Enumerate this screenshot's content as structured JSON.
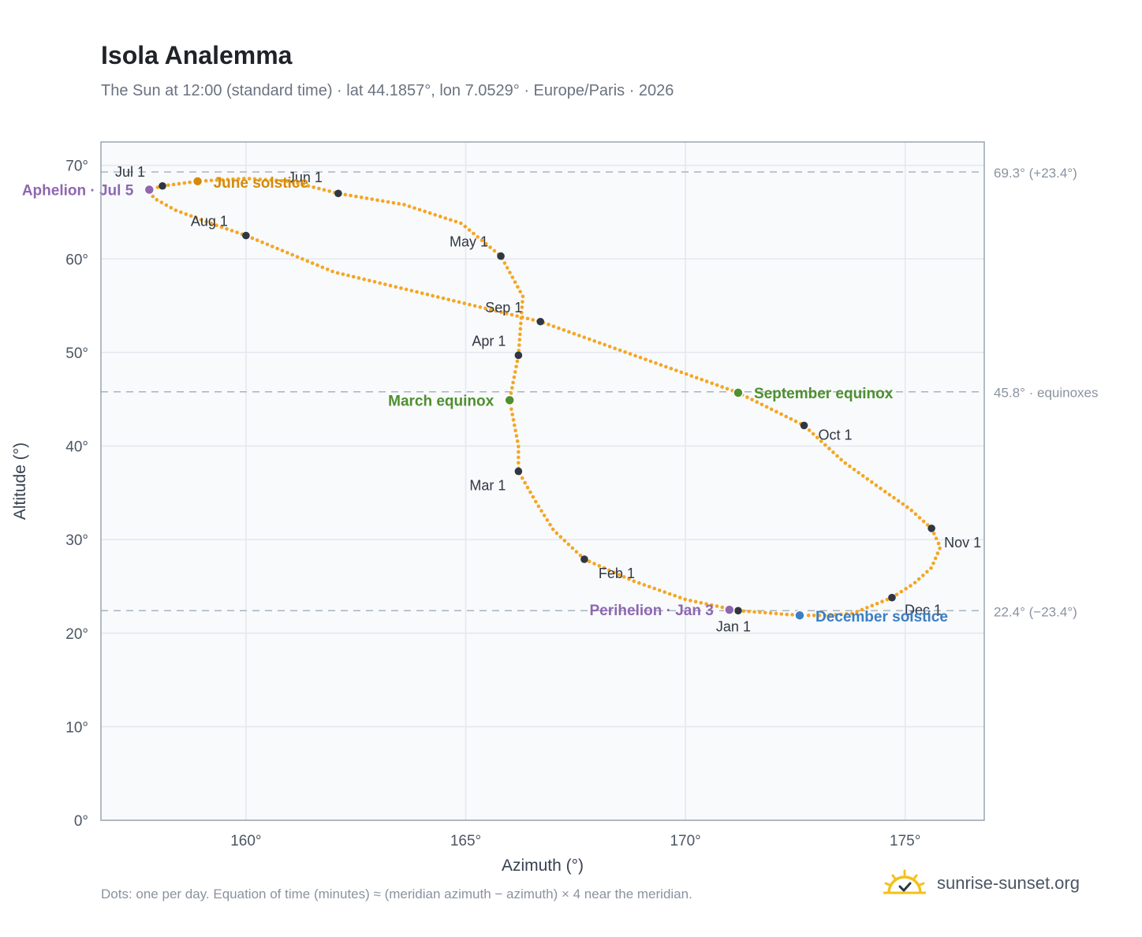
{
  "header": {
    "title": "Isola Analemma",
    "subtitle": "The Sun at 12:00 (standard time) · lat 44.1857°, lon 7.0529° · Europe/Paris · 2026"
  },
  "footer": {
    "note": "Dots: one per day. Equation of time (minutes) ≈ (meridian azimuth − azimuth) × 4 near the meridian.",
    "brand": "sunrise-sunset.org"
  },
  "colors": {
    "curve": "#f5a623",
    "month_marker": "#2f3742",
    "june_solstice": "#d48a0c",
    "equinox": "#4f8f2f",
    "december_solstice": "#3a7ec5",
    "apsis": "#8e67b0",
    "reference_line": "#a8b4bf",
    "plot_bg": "#f8fafc",
    "grid": "#e3e8ee"
  },
  "chart_data": {
    "type": "scatter",
    "xlabel": "Azimuth (°)",
    "ylabel": "Altitude (°)",
    "xlim": [
      156.7,
      176.8
    ],
    "ylim": [
      0,
      72.5
    ],
    "x_ticks": [
      160,
      165,
      170,
      175
    ],
    "x_tick_labels": [
      "160°",
      "165°",
      "170°",
      "175°"
    ],
    "y_ticks": [
      0,
      10,
      20,
      30,
      40,
      50,
      60,
      70
    ],
    "y_tick_labels": [
      "0°",
      "10°",
      "20°",
      "30°",
      "40°",
      "50°",
      "60°",
      "70°"
    ],
    "grid": true,
    "series": [
      {
        "points": [
          [
            171.2,
            22.4
          ],
          [
            171.8,
            22.2
          ],
          [
            172.3,
            22.0
          ],
          [
            172.8,
            21.9
          ],
          [
            173.2,
            21.9
          ],
          [
            173.8,
            22.1
          ],
          [
            174.7,
            23.8
          ],
          [
            175.2,
            25.3
          ],
          [
            175.6,
            27.0
          ],
          [
            175.8,
            29.2
          ],
          [
            175.6,
            31.2
          ],
          [
            175.1,
            33.3
          ],
          [
            174.4,
            35.6
          ],
          [
            173.6,
            38.3
          ],
          [
            172.7,
            42.2
          ],
          [
            171.2,
            45.7
          ],
          [
            166.7,
            53.3
          ],
          [
            162.0,
            58.6
          ],
          [
            160.0,
            62.5
          ],
          [
            159.2,
            63.8
          ],
          [
            158.4,
            65.2
          ],
          [
            157.9,
            66.5
          ],
          [
            157.8,
            67.4
          ],
          [
            158.1,
            67.8
          ],
          [
            158.9,
            68.3
          ],
          [
            160.0,
            68.6
          ],
          [
            161.0,
            68.3
          ],
          [
            162.1,
            67.0
          ],
          [
            163.6,
            65.8
          ],
          [
            164.9,
            63.8
          ],
          [
            165.8,
            60.3
          ],
          [
            166.3,
            56.0
          ],
          [
            166.2,
            49.7
          ],
          [
            166.0,
            44.9
          ],
          [
            166.2,
            40.0
          ],
          [
            166.2,
            37.3
          ],
          [
            166.6,
            34.0
          ],
          [
            167.0,
            31.0
          ],
          [
            167.7,
            27.9
          ],
          [
            168.8,
            25.6
          ],
          [
            170.0,
            23.6
          ],
          [
            171.2,
            22.4
          ]
        ]
      }
    ],
    "month_markers": [
      {
        "label": "Jan 1",
        "az": 171.2,
        "alt": 22.4
      },
      {
        "label": "Feb 1",
        "az": 167.7,
        "alt": 27.9
      },
      {
        "label": "Mar 1",
        "az": 166.2,
        "alt": 37.3
      },
      {
        "label": "Apr 1",
        "az": 166.2,
        "alt": 49.7
      },
      {
        "label": "May 1",
        "az": 165.8,
        "alt": 60.3
      },
      {
        "label": "Jun 1",
        "az": 162.1,
        "alt": 67.0
      },
      {
        "label": "Jul 1",
        "az": 158.1,
        "alt": 67.8
      },
      {
        "label": "Aug 1",
        "az": 160.0,
        "alt": 62.5
      },
      {
        "label": "Sep 1",
        "az": 166.7,
        "alt": 53.3
      },
      {
        "label": "Oct 1",
        "az": 172.7,
        "alt": 42.2
      },
      {
        "label": "Nov 1",
        "az": 175.6,
        "alt": 31.2
      },
      {
        "label": "Dec 1",
        "az": 174.7,
        "alt": 23.8
      }
    ],
    "events": [
      {
        "label": "June solstice",
        "az": 158.9,
        "alt": 68.3,
        "color_key": "june_solstice"
      },
      {
        "label": "March equinox",
        "az": 166.0,
        "alt": 44.9,
        "color_key": "equinox"
      },
      {
        "label": "September equinox",
        "az": 171.2,
        "alt": 45.7,
        "color_key": "equinox"
      },
      {
        "label": "December solstice",
        "az": 172.6,
        "alt": 21.9,
        "color_key": "december_solstice"
      },
      {
        "label": "Aphelion · Jul 5",
        "az": 157.8,
        "alt": 67.4,
        "color_key": "apsis"
      },
      {
        "label": "Perihelion · Jan 3",
        "az": 171.0,
        "alt": 22.5,
        "color_key": "apsis"
      }
    ],
    "reference_lines": [
      {
        "alt": 69.3,
        "label": "69.3° (+23.4°)"
      },
      {
        "alt": 45.8,
        "label": "45.8° · equinoxes"
      },
      {
        "alt": 22.4,
        "label": "22.4° (−23.4°)"
      }
    ]
  }
}
